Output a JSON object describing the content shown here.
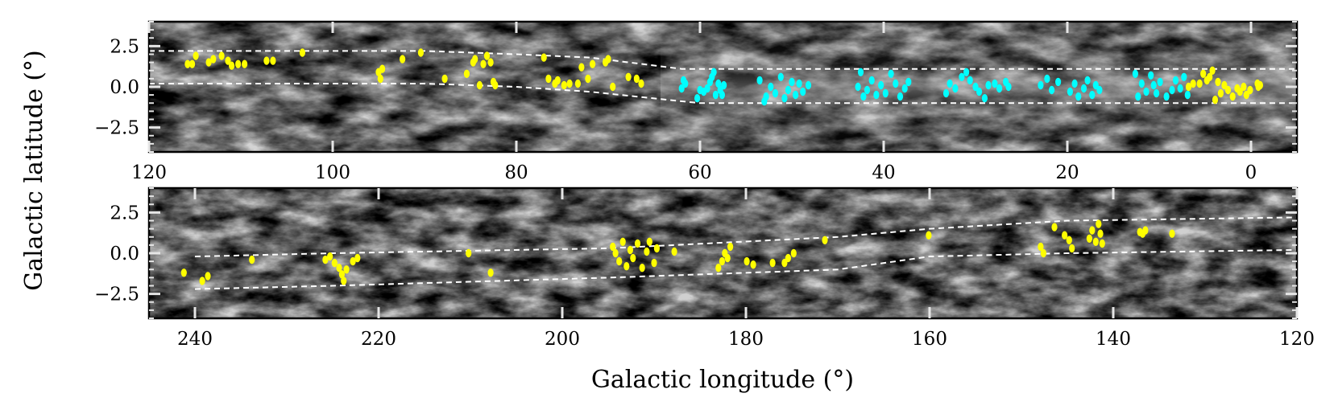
{
  "chart_data": {
    "type": "scatter",
    "ylabel": "Galactic latitude (°)",
    "xlabel": "Galactic longitude (°)",
    "colors": {
      "yellow": "#ffff00",
      "cyan": "#00ffff",
      "boundary": "#ffffff",
      "frame": "#000000"
    },
    "panels": [
      {
        "id": "top",
        "xlim": [
          120,
          -5
        ],
        "ylim": [
          -4,
          4
        ],
        "xticks": [
          120,
          100,
          80,
          60,
          40,
          20,
          0
        ],
        "xtick_labels": [
          "120",
          "100",
          "80",
          "60",
          "40",
          "20",
          "0"
        ],
        "yticks": [
          2.5,
          0.0,
          -2.5
        ],
        "ytick_labels": [
          "2.5",
          "0.0",
          "−2.5"
        ],
        "boundary_upper": [
          [
            120,
            2.2
          ],
          [
            90,
            2.2
          ],
          [
            80,
            2.0
          ],
          [
            72,
            1.8
          ],
          [
            62,
            1.1
          ],
          [
            -5,
            1.1
          ]
        ],
        "boundary_lower": [
          [
            120,
            0.2
          ],
          [
            90,
            0.2
          ],
          [
            80,
            0.0
          ],
          [
            72,
            -0.3
          ],
          [
            60,
            -1.0
          ],
          [
            -5,
            -1.0
          ]
        ],
        "series": [
          {
            "name": "yellow",
            "color": "#ffff00",
            "points": [
              [
                115.8,
                1.4
              ],
              [
                115.3,
                1.4
              ],
              [
                114.9,
                1.9
              ],
              [
                113.5,
                1.5
              ],
              [
                113.0,
                1.7
              ],
              [
                112.1,
                1.9
              ],
              [
                111.4,
                1.6
              ],
              [
                111.0,
                1.3
              ],
              [
                110.3,
                1.4
              ],
              [
                109.6,
                1.4
              ],
              [
                107.2,
                1.6
              ],
              [
                106.5,
                1.6
              ],
              [
                103.3,
                2.1
              ],
              [
                95.0,
                0.9
              ],
              [
                94.8,
                0.5
              ],
              [
                94.6,
                1.1
              ],
              [
                92.4,
                1.7
              ],
              [
                90.4,
                2.1
              ],
              [
                87.8,
                0.5
              ],
              [
                85.4,
                0.8
              ],
              [
                84.7,
                1.5
              ],
              [
                84.5,
                1.7
              ],
              [
                84.0,
                0.1
              ],
              [
                83.6,
                1.4
              ],
              [
                83.2,
                1.9
              ],
              [
                82.8,
                1.5
              ],
              [
                82.5,
                0.3
              ],
              [
                82.3,
                0.1
              ],
              [
                77.0,
                1.8
              ],
              [
                76.5,
                0.5
              ],
              [
                75.8,
                0.2
              ],
              [
                75.5,
                0.4
              ],
              [
                74.8,
                0.1
              ],
              [
                74.2,
                0.2
              ],
              [
                73.3,
                0.2
              ],
              [
                72.9,
                1.2
              ],
              [
                72.2,
                0.5
              ],
              [
                71.7,
                1.4
              ],
              [
                70.3,
                1.5
              ],
              [
                70.0,
                1.7
              ],
              [
                69.5,
                0.0
              ],
              [
                67.8,
                0.6
              ],
              [
                66.9,
                0.5
              ],
              [
                66.4,
                0.2
              ],
              [
                -0.7,
                0.2
              ],
              [
                -0.8,
                0.0
              ],
              [
                -1.0,
                0.1
              ],
              [
                0.1,
                -0.2
              ],
              [
                0.5,
                -0.5
              ],
              [
                0.8,
                0.0
              ],
              [
                1.2,
                -0.3
              ],
              [
                1.5,
                -0.1
              ],
              [
                2.0,
                -0.6
              ],
              [
                2.5,
                -0.2
              ],
              [
                2.9,
                0.1
              ],
              [
                3.3,
                -0.4
              ],
              [
                3.6,
                0.3
              ],
              [
                3.9,
                -0.8
              ],
              [
                4.2,
                1.0
              ],
              [
                4.5,
                0.6
              ],
              [
                4.8,
                0.4
              ],
              [
                5.2,
                0.8
              ],
              [
                5.6,
                0.2
              ],
              [
                6.3,
                0.2
              ],
              [
                6.8,
                0.0
              ]
            ]
          },
          {
            "name": "cyan",
            "color": "#00ffff",
            "points": [
              [
                62.0,
                -0.1
              ],
              [
                61.8,
                0.4
              ],
              [
                61.6,
                0.2
              ],
              [
                60.3,
                -0.7
              ],
              [
                60.0,
                -0.2
              ],
              [
                59.6,
                -0.3
              ],
              [
                59.2,
                -0.1
              ],
              [
                58.9,
                0.3
              ],
              [
                58.7,
                0.6
              ],
              [
                58.5,
                0.9
              ],
              [
                58.3,
                -0.5
              ],
              [
                58.0,
                0.2
              ],
              [
                57.8,
                -0.2
              ],
              [
                57.6,
                -0.5
              ],
              [
                57.4,
                0.1
              ],
              [
                53.5,
                0.4
              ],
              [
                53.0,
                -0.9
              ],
              [
                52.8,
                -0.6
              ],
              [
                52.3,
                0.0
              ],
              [
                51.8,
                -0.4
              ],
              [
                51.2,
                0.6
              ],
              [
                50.8,
                -0.7
              ],
              [
                50.4,
                -0.2
              ],
              [
                50.0,
                0.3
              ],
              [
                49.6,
                -0.5
              ],
              [
                49.2,
                0.2
              ],
              [
                48.8,
                -0.3
              ],
              [
                48.2,
                0.1
              ],
              [
                42.8,
                0.0
              ],
              [
                42.5,
                0.9
              ],
              [
                42.2,
                -0.6
              ],
              [
                41.8,
                -0.2
              ],
              [
                41.3,
                0.4
              ],
              [
                40.8,
                -0.5
              ],
              [
                40.3,
                0.1
              ],
              [
                39.8,
                -0.4
              ],
              [
                39.2,
                0.8
              ],
              [
                38.7,
                0.2
              ],
              [
                38.2,
                -0.6
              ],
              [
                37.7,
                -0.1
              ],
              [
                37.3,
                0.3
              ],
              [
                33.2,
                -0.4
              ],
              [
                32.8,
                0.2
              ],
              [
                32.2,
                -0.1
              ],
              [
                31.5,
                0.6
              ],
              [
                31.0,
                0.9
              ],
              [
                30.6,
                0.4
              ],
              [
                30.0,
                0.0
              ],
              [
                29.6,
                -0.3
              ],
              [
                29.0,
                -0.7
              ],
              [
                28.6,
                0.1
              ],
              [
                27.9,
                0.2
              ],
              [
                27.4,
                -0.1
              ],
              [
                26.7,
                0.3
              ],
              [
                26.4,
                0.0
              ],
              [
                22.9,
                0.1
              ],
              [
                22.2,
                0.5
              ],
              [
                21.7,
                -0.2
              ],
              [
                21.0,
                0.3
              ],
              [
                19.7,
                -0.3
              ],
              [
                19.2,
                0.2
              ],
              [
                18.8,
                -0.6
              ],
              [
                18.2,
                -0.1
              ],
              [
                17.8,
                0.4
              ],
              [
                17.3,
                -0.5
              ],
              [
                16.9,
                0.1
              ],
              [
                16.5,
                -0.2
              ],
              [
                12.6,
                0.8
              ],
              [
                12.3,
                -0.6
              ],
              [
                11.9,
                0.2
              ],
              [
                11.4,
                -0.3
              ],
              [
                10.9,
                0.7
              ],
              [
                10.6,
                0.1
              ],
              [
                10.3,
                -0.4
              ],
              [
                9.9,
                0.3
              ],
              [
                9.2,
                -0.6
              ],
              [
                8.6,
                -0.2
              ],
              [
                8.2,
                0.4
              ],
              [
                7.7,
                -0.1
              ],
              [
                7.3,
                0.6
              ],
              [
                6.9,
                -0.5
              ]
            ]
          }
        ]
      },
      {
        "id": "bottom",
        "xlim": [
          245,
          120
        ],
        "ylim": [
          -4,
          4
        ],
        "xticks": [
          240,
          220,
          200,
          180,
          160,
          140,
          120
        ],
        "xtick_labels": [
          "240",
          "220",
          "200",
          "180",
          "160",
          "140",
          "120"
        ],
        "yticks": [
          2.5,
          0.0,
          -2.5
        ],
        "ytick_labels": [
          "2.5",
          "0.0",
          "−2.5"
        ],
        "boundary_upper": [
          [
            240,
            -0.2
          ],
          [
            225,
            0.0
          ],
          [
            195,
            0.3
          ],
          [
            170,
            1.0
          ],
          [
            160,
            1.5
          ],
          [
            145,
            2.0
          ],
          [
            120,
            2.2
          ]
        ],
        "boundary_lower": [
          [
            240,
            -2.2
          ],
          [
            225,
            -2.0
          ],
          [
            195,
            -1.5
          ],
          [
            170,
            -1.0
          ],
          [
            160,
            -0.2
          ],
          [
            145,
            0.0
          ],
          [
            120,
            0.2
          ]
        ],
        "series": [
          {
            "name": "yellow",
            "color": "#ffff00",
            "points": [
              [
                241.2,
                -1.2
              ],
              [
                239.2,
                -1.7
              ],
              [
                238.6,
                -1.4
              ],
              [
                233.8,
                -0.4
              ],
              [
                225.8,
                -0.4
              ],
              [
                225.3,
                -0.2
              ],
              [
                224.8,
                -0.6
              ],
              [
                224.3,
                -0.9
              ],
              [
                224.0,
                -1.3
              ],
              [
                223.8,
                -1.7
              ],
              [
                223.5,
                -1.0
              ],
              [
                222.8,
                -0.5
              ],
              [
                222.3,
                -0.3
              ],
              [
                210.2,
                0.0
              ],
              [
                207.8,
                -1.2
              ],
              [
                194.5,
                0.4
              ],
              [
                194.2,
                0.0
              ],
              [
                193.8,
                -0.5
              ],
              [
                193.4,
                0.7
              ],
              [
                193.0,
                -0.8
              ],
              [
                192.6,
                0.2
              ],
              [
                192.3,
                -0.3
              ],
              [
                191.8,
                0.6
              ],
              [
                191.3,
                -0.9
              ],
              [
                190.8,
                0.1
              ],
              [
                190.5,
                0.7
              ],
              [
                190.0,
                -0.6
              ],
              [
                189.7,
                0.3
              ],
              [
                187.8,
                0.1
              ],
              [
                183.0,
                -0.9
              ],
              [
                182.6,
                -0.5
              ],
              [
                182.3,
                0.0
              ],
              [
                182.0,
                -0.3
              ],
              [
                181.7,
                0.4
              ],
              [
                179.9,
                -0.5
              ],
              [
                179.2,
                -0.7
              ],
              [
                177.1,
                -0.6
              ],
              [
                175.8,
                -0.6
              ],
              [
                175.4,
                -0.3
              ],
              [
                174.8,
                0.0
              ],
              [
                171.4,
                0.8
              ],
              [
                160.1,
                1.1
              ],
              [
                147.9,
                0.4
              ],
              [
                147.6,
                0.0
              ],
              [
                146.4,
                1.6
              ],
              [
                145.3,
                1.1
              ],
              [
                144.8,
                0.8
              ],
              [
                144.5,
                0.3
              ],
              [
                142.6,
                0.9
              ],
              [
                142.3,
                1.4
              ],
              [
                141.9,
                0.7
              ],
              [
                141.6,
                1.8
              ],
              [
                141.4,
                1.2
              ],
              [
                141.2,
                0.6
              ],
              [
                137.1,
                1.3
              ],
              [
                136.8,
                1.2
              ],
              [
                136.5,
                1.4
              ],
              [
                133.6,
                1.2
              ]
            ]
          }
        ]
      }
    ]
  }
}
